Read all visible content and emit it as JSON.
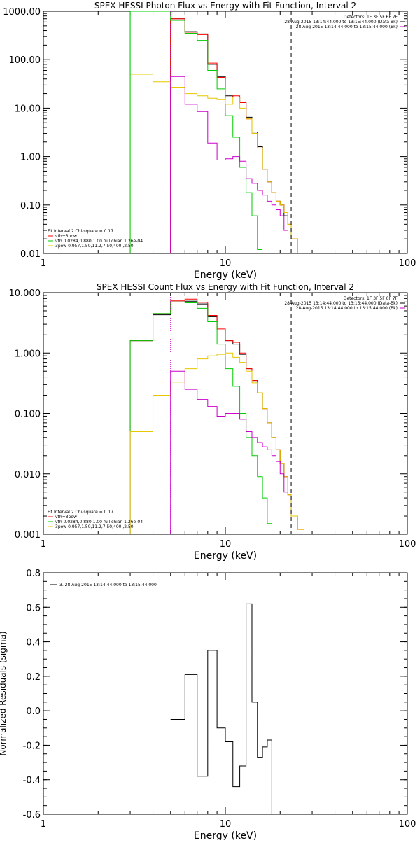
{
  "chart_data": [
    {
      "type": "line",
      "title": "SPEX HESSI Photon Flux vs Energy with Fit Function, Interval 2",
      "xlabel": "Energy (keV)",
      "ylabel": "",
      "xscale": "log",
      "yscale": "log",
      "xlim": [
        1,
        100
      ],
      "ylim": [
        0.01,
        1000
      ],
      "x_ticks": [
        1,
        10,
        100
      ],
      "x_tick_labels": [
        "1",
        "10",
        "100"
      ],
      "y_ticks": [
        0.01,
        0.1,
        1,
        10,
        100,
        1000
      ],
      "y_tick_labels": [
        "0.01",
        "0.10",
        "1.00",
        "10.00",
        "100.00",
        "1000.00"
      ],
      "header_lines": [
        "Detectors: 1F 3F 5F 6F 7F",
        "28-Aug-2015 13:14:44.000 to 13:15:44.000 (Data-Bk)",
        "28-Aug-2015 13:14:44.000 to 13:15:44.000 (Bk)"
      ],
      "header_colors": [
        "#000000",
        "#000000",
        "#cc00cc"
      ],
      "legend": [
        "Fit Interval 2   Chi-square = 0.17",
        "vth+3pow",
        "vth 0.0284,0.880,1.00  full chian 1.26e-04",
        "3pow 0.957,1.50,11.2,7.50,400.,2.50"
      ],
      "legend_colors": [
        "#000000",
        "#ff0000",
        "#00cc00",
        "#e6c800"
      ],
      "edges": [
        3.0,
        4.0,
        5.0,
        6.0,
        7.0,
        8.0,
        9.0,
        10.0,
        11.0,
        12.0,
        13.0,
        14.0,
        15.0,
        16.0,
        17.0,
        18.0,
        19.0,
        20.0,
        21.0,
        22.0,
        23.0,
        25.0,
        27.0,
        30.0
      ],
      "series": [
        {
          "name": "Data-Bk",
          "color": "#000000",
          "values": [
            null,
            null,
            700,
            380,
            340,
            80,
            45,
            18,
            17,
            13,
            6.5,
            3.2,
            1.6,
            0.55,
            0.3,
            0.18,
            0.12,
            0.1,
            0.06,
            null,
            null,
            null,
            null
          ]
        },
        {
          "name": "vth+3pow",
          "color": "#ff0000",
          "values": [
            null,
            null,
            700,
            370,
            330,
            85,
            43,
            17,
            18,
            13,
            6.0,
            3.0,
            1.5,
            0.55,
            0.3,
            0.18,
            0.12,
            0.1,
            0.07,
            0.04,
            0.02,
            0.01,
            null
          ]
        },
        {
          "name": "vth",
          "color": "#00cc00",
          "values": [
            1000,
            1000,
            650,
            350,
            250,
            60,
            25,
            7,
            2.5,
            0.6,
            0.18,
            0.06,
            0.012,
            null,
            null,
            null,
            null,
            null,
            null,
            null,
            null,
            null,
            null
          ]
        },
        {
          "name": "3pow",
          "color": "#e6c800",
          "values": [
            50,
            35,
            27,
            20,
            18,
            16,
            15,
            12,
            17,
            10,
            6.0,
            3.0,
            1.5,
            0.55,
            0.3,
            0.18,
            0.12,
            0.1,
            0.07,
            0.04,
            0.02,
            0.01,
            null
          ]
        },
        {
          "name": "Bk",
          "color": "#cc00cc",
          "values": [
            null,
            null,
            45,
            12,
            8.5,
            1.9,
            0.85,
            0.9,
            1.0,
            0.8,
            0.35,
            0.28,
            0.2,
            0.16,
            0.12,
            0.1,
            0.08,
            0.06,
            0.03,
            null,
            null,
            null,
            null
          ]
        }
      ],
      "vlines": [
        {
          "x": 3.0,
          "color": "#00cc00",
          "style": "solid"
        },
        {
          "x": 5.0,
          "color": "#cc00cc",
          "style": "dotted"
        },
        {
          "x": 23.0,
          "color": "#000000",
          "style": "dashed"
        }
      ]
    },
    {
      "type": "line",
      "title": "SPEX HESSI Count Flux vs Energy with Fit Function, Interval 2",
      "xlabel": "Energy (keV)",
      "ylabel": "",
      "xscale": "log",
      "yscale": "log",
      "xlim": [
        1,
        100
      ],
      "ylim": [
        0.001,
        10
      ],
      "x_ticks": [
        1,
        10,
        100
      ],
      "x_tick_labels": [
        "1",
        "10",
        "100"
      ],
      "y_ticks": [
        0.001,
        0.01,
        0.1,
        1,
        10
      ],
      "y_tick_labels": [
        "0.001",
        "0.010",
        "0.100",
        "1.000",
        "10.000"
      ],
      "header_lines": [
        "Detectors: 1F 3F 5F 6F 7F",
        "28-Aug-2015 13:14:44.000 to 13:15:44.000 (Data-Bk)",
        "28-Aug-2015 13:14:44.000 to 13:15:44.000 (Bk)"
      ],
      "header_colors": [
        "#000000",
        "#000000",
        "#cc00cc"
      ],
      "legend": [
        "Fit Interval 2   Chi-square = 0.17",
        "vth+3pow",
        "vth 0.0284,0.880,1.00  full chian 1.26e-04",
        "3pow 0.957,1.50,11.2,7.50,400.,2.50"
      ],
      "legend_colors": [
        "#000000",
        "#ff0000",
        "#00cc00",
        "#e6c800"
      ],
      "edges": [
        3.0,
        4.0,
        5.0,
        6.0,
        7.0,
        8.0,
        9.0,
        10.0,
        11.0,
        12.0,
        13.0,
        14.0,
        15.0,
        16.0,
        17.0,
        18.0,
        19.0,
        20.0,
        21.0,
        22.0,
        23.0,
        25.0,
        27.0,
        30.0
      ],
      "series": [
        {
          "name": "Data-Bk",
          "color": "#000000",
          "values": [
            1.6,
            4.3,
            7.0,
            7.2,
            6.5,
            4.0,
            2.4,
            1.6,
            1.4,
            0.95,
            0.55,
            0.35,
            0.22,
            0.12,
            0.07,
            0.04,
            0.025,
            0.015,
            0.009,
            0.0045,
            null,
            null,
            null
          ]
        },
        {
          "name": "vth+3pow",
          "color": "#ff0000",
          "values": [
            1.6,
            4.5,
            7.3,
            7.8,
            6.9,
            4.2,
            2.5,
            1.6,
            1.5,
            1.0,
            0.55,
            0.35,
            0.22,
            0.12,
            0.07,
            0.04,
            0.025,
            0.015,
            0.009,
            0.0045,
            0.002,
            0.0012,
            null
          ]
        },
        {
          "name": "vth",
          "color": "#00cc00",
          "values": [
            1.6,
            4.5,
            7.0,
            6.8,
            5.5,
            3.3,
            1.4,
            0.55,
            0.28,
            0.1,
            0.04,
            0.02,
            0.009,
            0.004,
            0.0015,
            null,
            null,
            null,
            null,
            null,
            null,
            null,
            null
          ]
        },
        {
          "name": "3pow",
          "color": "#e6c800",
          "values": [
            0.05,
            0.2,
            0.33,
            0.55,
            0.8,
            0.9,
            0.95,
            1.0,
            0.85,
            0.7,
            0.5,
            0.32,
            0.22,
            0.12,
            0.07,
            0.04,
            0.025,
            0.015,
            0.009,
            0.0045,
            0.002,
            0.0012,
            null
          ]
        },
        {
          "name": "Bk",
          "color": "#cc00cc",
          "values": [
            null,
            null,
            0.5,
            0.25,
            0.17,
            0.13,
            0.09,
            0.1,
            0.1,
            0.08,
            0.05,
            0.04,
            0.033,
            0.028,
            0.025,
            0.02,
            0.016,
            0.01,
            0.005,
            null,
            null,
            null,
            null
          ]
        }
      ],
      "vlines": [
        {
          "x": 5.0,
          "color": "#cc00cc",
          "style": "dotted"
        },
        {
          "x": 23.0,
          "color": "#000000",
          "style": "dashed"
        }
      ]
    },
    {
      "type": "line",
      "title": "",
      "xlabel": "Energy (keV)",
      "ylabel": "Normalized Residuals (sigma)",
      "xscale": "log",
      "yscale": "linear",
      "xlim": [
        1,
        100
      ],
      "ylim": [
        -0.6,
        0.8
      ],
      "x_ticks": [
        1,
        10,
        100
      ],
      "x_tick_labels": [
        "1",
        "10",
        "100"
      ],
      "y_ticks": [
        -0.6,
        -0.4,
        -0.2,
        0.0,
        0.2,
        0.4,
        0.6,
        0.8
      ],
      "y_tick_labels": [
        "-0.6",
        "-0.4",
        "-0.2",
        "0.0",
        "0.2",
        "0.4",
        "0.6",
        "0.8"
      ],
      "header_lines": [],
      "header_colors": [],
      "legend": [
        "3. 28-Aug-2015 13:14:44.000 to 13:15:44.000"
      ],
      "legend_colors": [
        "#000000"
      ],
      "edges": [
        5.0,
        6.0,
        7.0,
        8.0,
        9.0,
        10.0,
        11.0,
        12.0,
        13.0,
        14.0,
        15.0,
        16.0,
        17.0,
        18.0,
        19.0,
        20.0,
        21.0,
        22.0,
        23.0
      ],
      "series": [
        {
          "name": "",
          "color": "#000000",
          "values": [
            -0.05,
            0.21,
            -0.38,
            0.35,
            -0.1,
            -0.18,
            -0.44,
            -0.32,
            0.62,
            0.05,
            -0.27,
            -0.21,
            -0.17,
            -0.6,
            -0.6,
            -0.6,
            -0.6,
            -0.6
          ]
        }
      ],
      "vlines": []
    }
  ]
}
